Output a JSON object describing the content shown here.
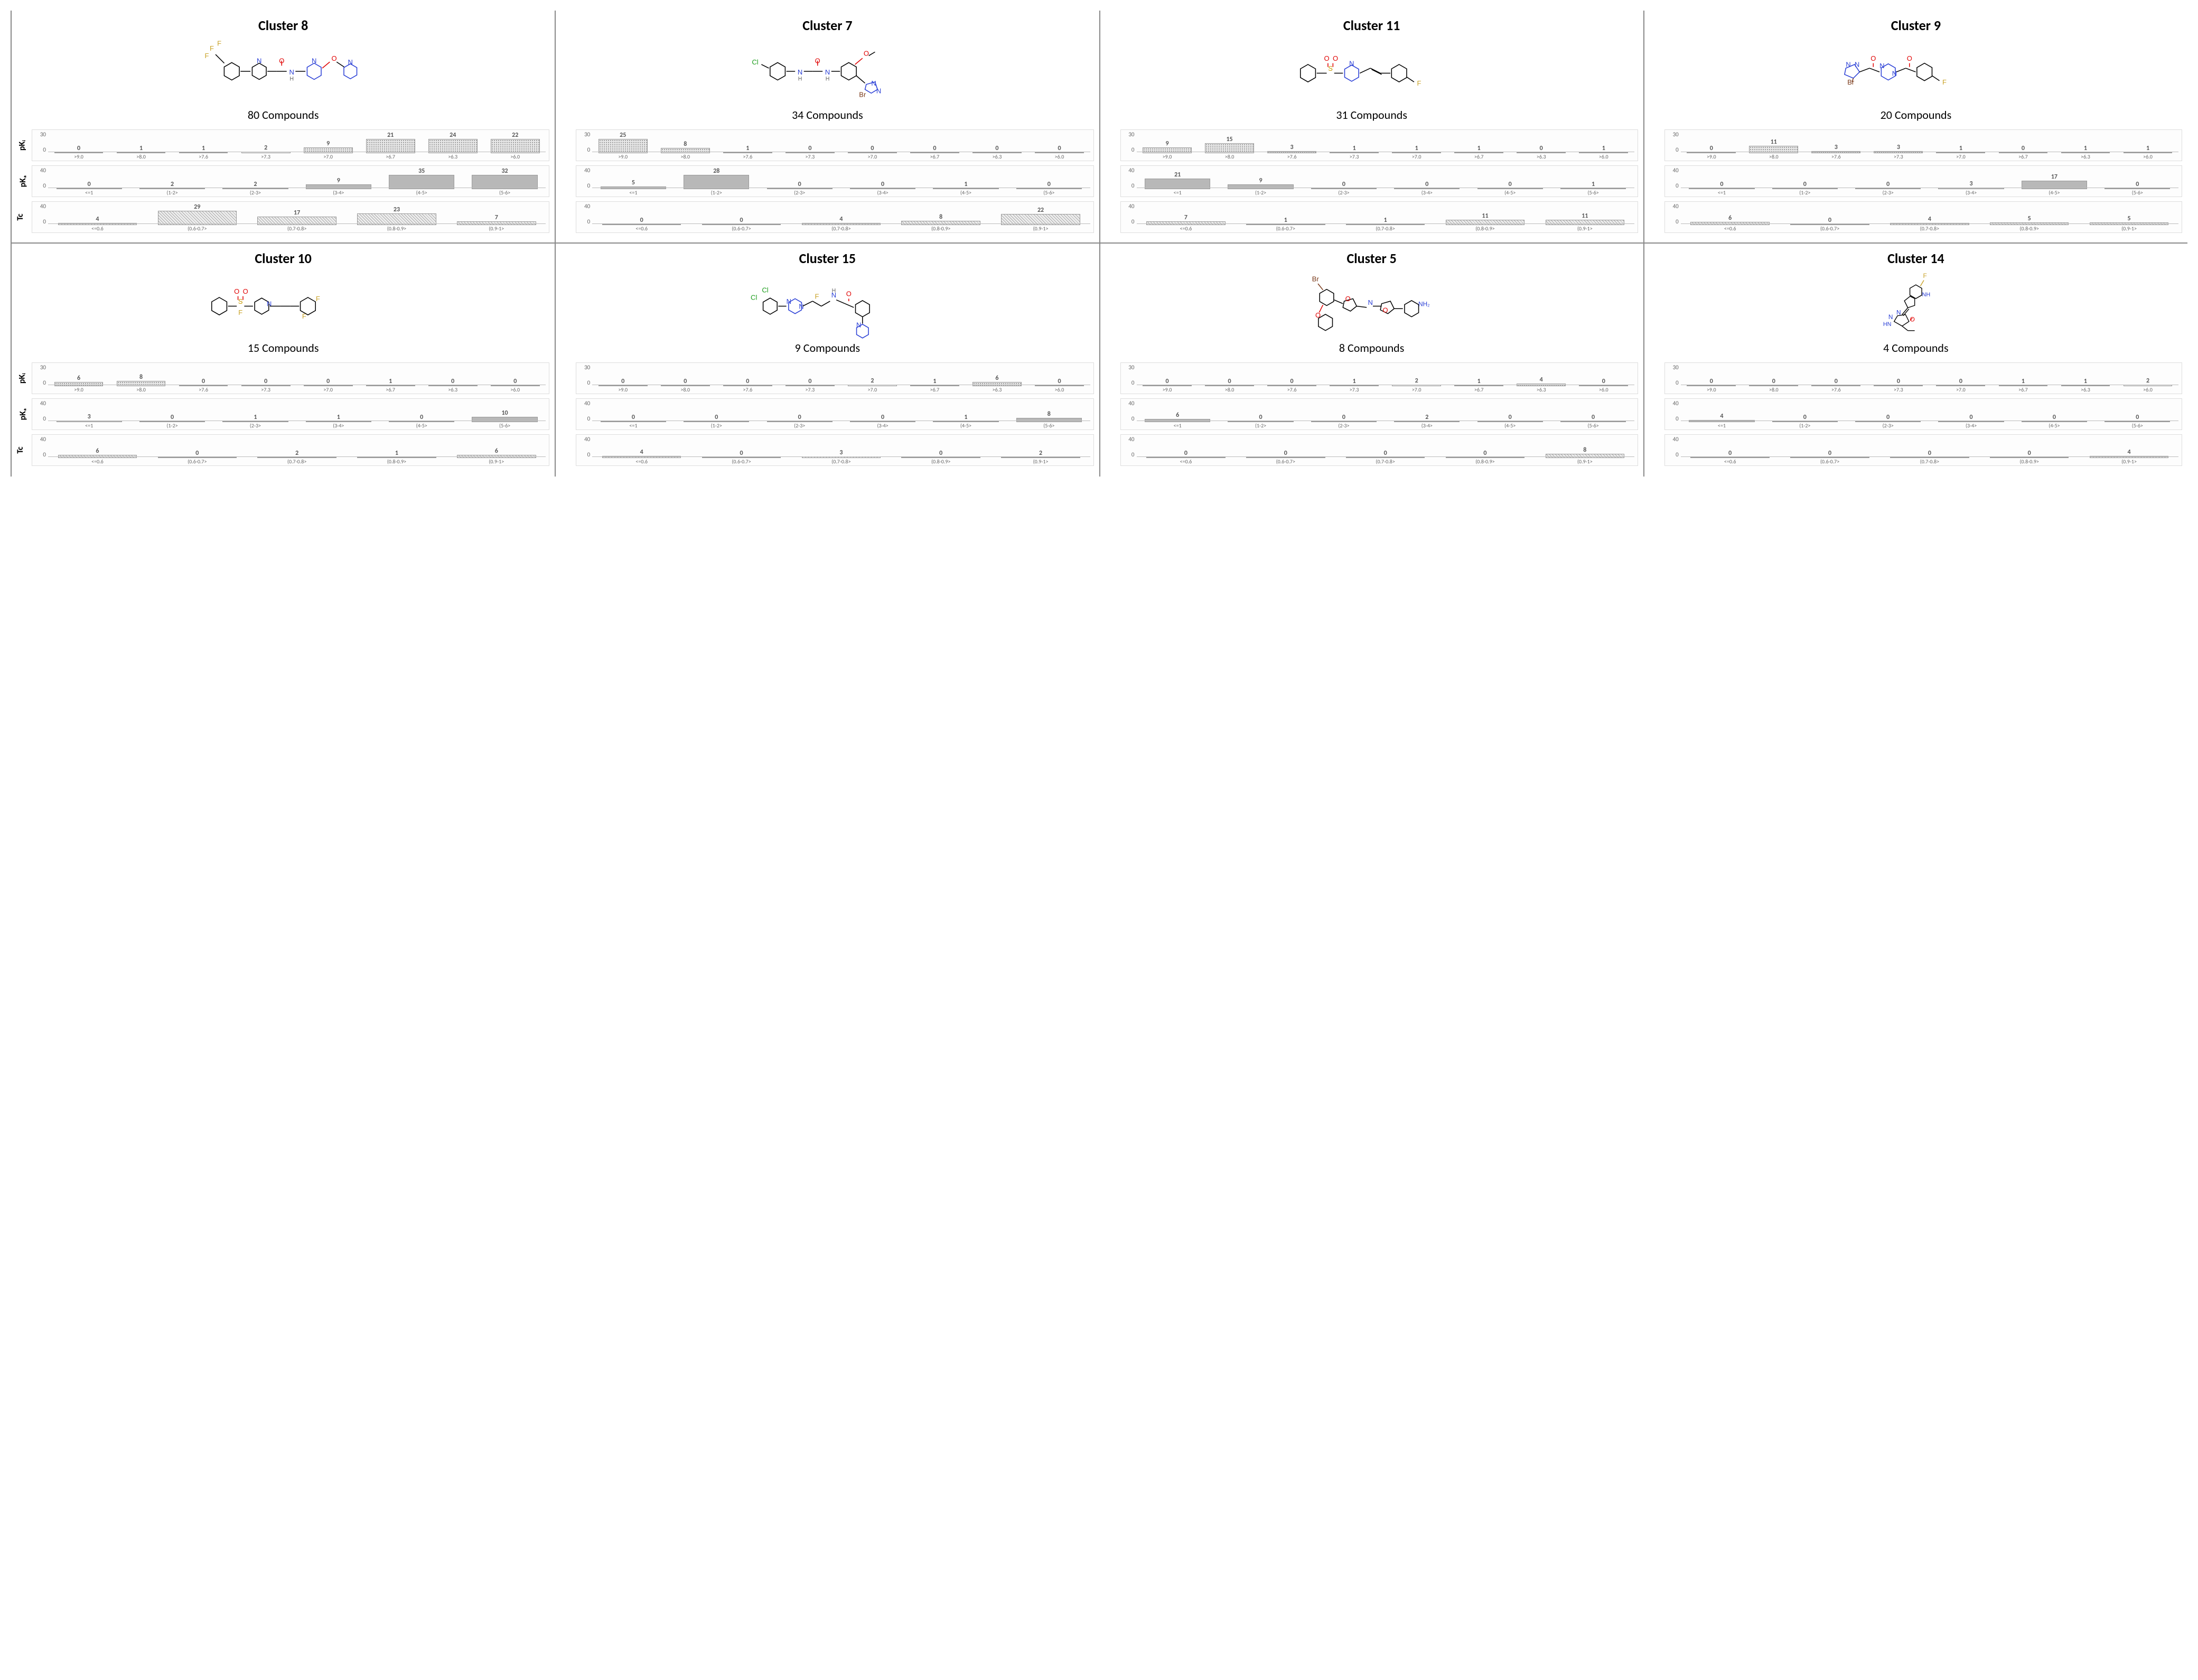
{
  "axis_labels": {
    "pki": "pKᵢ",
    "pka": "pKₐ",
    "tc": "Tc"
  },
  "pki_range": {
    "max": 30,
    "ticks": [
      30,
      0
    ],
    "x": [
      ">9.0",
      ">8.0",
      ">7.6",
      ">7.3",
      ">7.0",
      ">6.7",
      ">6.3",
      ">6.0"
    ]
  },
  "pka_range": {
    "max": 40,
    "ticks": [
      40,
      0
    ],
    "x": [
      "<=1",
      "(1-2>",
      "(2-3>",
      "(3-4>",
      "(4-5>",
      "(5-6>"
    ]
  },
  "tc_range": {
    "max": 40,
    "ticks": [
      40,
      0
    ],
    "x": [
      "<=0.6",
      "(0.6-0.7>",
      "(0.7-0.8>",
      "(0.8-0.9>",
      "(0.9-1>"
    ]
  },
  "colors": {
    "cell_border": "#888888",
    "chart_border": "#dddddd",
    "bar_solid": "#b8b8b8",
    "bar_border": "#999999",
    "tick_text": "#666666"
  },
  "patterns": {
    "pki": "pattern-dots",
    "pka": "solid",
    "tc": "pattern-diag"
  },
  "clusters": [
    {
      "id": 8,
      "title": "Cluster 8",
      "compounds": "80  Compounds",
      "pki": [
        0,
        1,
        1,
        2,
        9,
        21,
        24,
        22
      ],
      "pka": [
        0,
        2,
        2,
        9,
        35,
        32
      ],
      "tc": [
        4,
        29,
        17,
        23,
        7
      ],
      "mol_type": "urea-pyridine"
    },
    {
      "id": 7,
      "title": "Cluster 7",
      "compounds": "34  Compounds",
      "pki": [
        25,
        8,
        1,
        0,
        0,
        0,
        0,
        0
      ],
      "pka": [
        5,
        28,
        0,
        0,
        1,
        0
      ],
      "tc": [
        0,
        0,
        4,
        8,
        22
      ],
      "mol_type": "chloro-pyrazole"
    },
    {
      "id": 11,
      "title": "Cluster 11",
      "compounds": "31  Compounds",
      "pki": [
        9,
        15,
        3,
        1,
        1,
        1,
        0,
        1
      ],
      "pka": [
        21,
        9,
        0,
        0,
        0,
        1
      ],
      "tc": [
        7,
        1,
        1,
        11,
        11
      ],
      "mol_type": "sulfonyl-stilbene"
    },
    {
      "id": 9,
      "title": "Cluster 9",
      "compounds": "20  Compounds",
      "pki": [
        0,
        11,
        3,
        3,
        1,
        0,
        1,
        1
      ],
      "pka": [
        0,
        0,
        0,
        3,
        17,
        0
      ],
      "tc": [
        6,
        0,
        4,
        5,
        5
      ],
      "mol_type": "pyrazole-piperazine"
    },
    {
      "id": 10,
      "title": "Cluster 10",
      "compounds": "15  Compounds",
      "pki": [
        6,
        8,
        0,
        0,
        0,
        1,
        0,
        0
      ],
      "pka": [
        3,
        0,
        1,
        1,
        0,
        10
      ],
      "tc": [
        6,
        0,
        2,
        1,
        6
      ],
      "mol_type": "sulfonyl-piperidine"
    },
    {
      "id": 15,
      "title": "Cluster 15",
      "compounds": "9  Compounds",
      "pki": [
        0,
        0,
        0,
        0,
        2,
        1,
        6,
        0
      ],
      "pka": [
        0,
        0,
        0,
        0,
        1,
        8
      ],
      "tc": [
        4,
        0,
        3,
        0,
        2
      ],
      "mol_type": "dichloro-piperazine"
    },
    {
      "id": 5,
      "title": "Cluster 5",
      "compounds": "8  Compounds",
      "pki": [
        0,
        0,
        0,
        1,
        2,
        1,
        4,
        0
      ],
      "pka": [
        6,
        0,
        0,
        2,
        0,
        0
      ],
      "tc": [
        0,
        0,
        0,
        0,
        8
      ],
      "mol_type": "bromo-furan"
    },
    {
      "id": 14,
      "title": "Cluster 14",
      "compounds": "4  Compounds",
      "pki": [
        0,
        0,
        0,
        0,
        0,
        1,
        1,
        2
      ],
      "pka": [
        4,
        0,
        0,
        0,
        0,
        0
      ],
      "tc": [
        0,
        0,
        0,
        0,
        4
      ],
      "mol_type": "fluoro-indole"
    }
  ],
  "molecule_atom_colors": {
    "C_bond": "#000000",
    "N": "#2a3fd6",
    "O": "#e00000",
    "F": "#c9a227",
    "Cl": "#1a9c1a",
    "Br": "#7a3a1a",
    "S": "#c79a00",
    "H": "#666666"
  }
}
